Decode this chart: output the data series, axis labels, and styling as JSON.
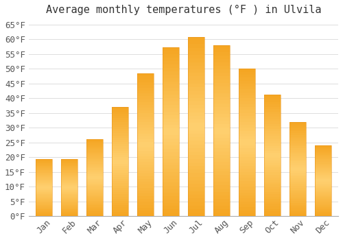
{
  "title": "Average monthly temperatures (°F ) in Ulvila",
  "months": [
    "Jan",
    "Feb",
    "Mar",
    "Apr",
    "May",
    "Jun",
    "Jul",
    "Aug",
    "Sep",
    "Oct",
    "Nov",
    "Dec"
  ],
  "values": [
    19.4,
    19.4,
    26.2,
    37.0,
    48.4,
    57.2,
    60.8,
    57.9,
    50.0,
    41.2,
    32.0,
    24.1
  ],
  "bar_color_bottom": "#F5A623",
  "bar_color_top": "#FFD070",
  "bar_color_main": "#FBB034",
  "background_color": "#ffffff",
  "grid_color": "#dddddd",
  "ylim": [
    0,
    67
  ],
  "yticks": [
    0,
    5,
    10,
    15,
    20,
    25,
    30,
    35,
    40,
    45,
    50,
    55,
    60,
    65
  ],
  "title_fontsize": 11,
  "tick_fontsize": 9,
  "tick_font_family": "monospace",
  "fig_width": 5.0,
  "fig_height": 3.5,
  "dpi": 100
}
